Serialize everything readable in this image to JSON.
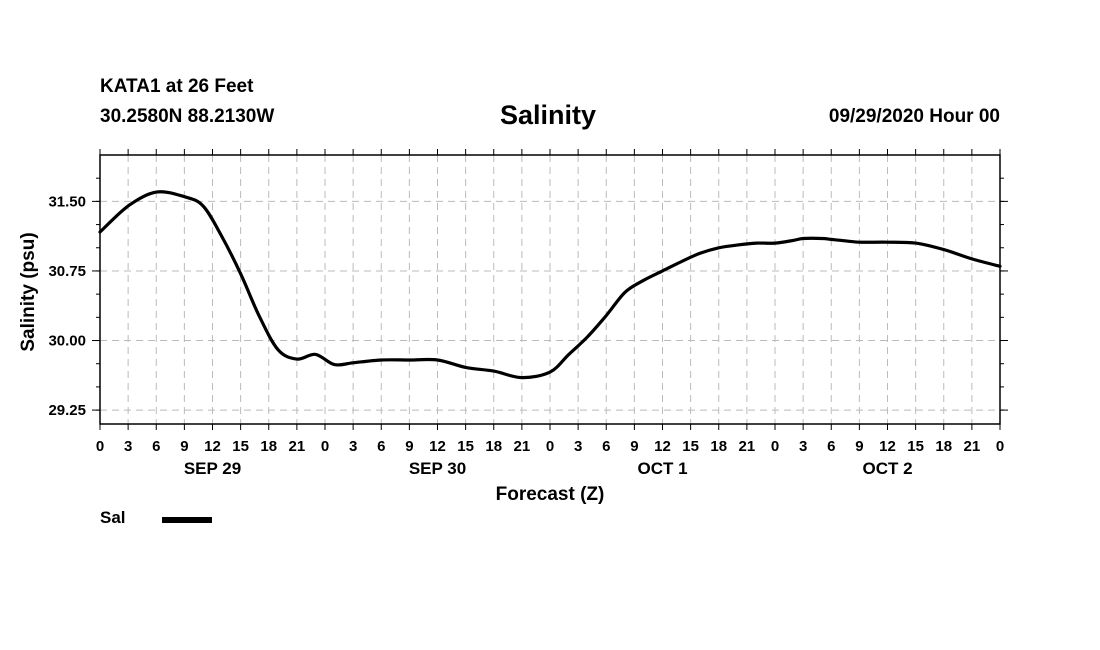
{
  "header": {
    "station": "KATA1 at 26 Feet",
    "coords": "30.2580N 88.2130W",
    "run": "09/29/2020 Hour 00"
  },
  "legend": {
    "label": "Sal",
    "icon": "thick-black-line-swatch"
  },
  "chart_data": {
    "type": "line",
    "title": "Salinity",
    "xlabel": "Forecast (Z)",
    "ylabel": "Salinity (psu)",
    "xlim": [
      0,
      96
    ],
    "ylim": [
      29.1,
      32.0
    ],
    "y_ticks": [
      29.25,
      30.0,
      30.75,
      31.5
    ],
    "y_tick_labels": [
      "29.25",
      "30.00",
      "30.75",
      "31.50"
    ],
    "x_tick_hours": [
      0,
      3,
      6,
      9,
      12,
      15,
      18,
      21,
      24,
      27,
      30,
      33,
      36,
      39,
      42,
      45,
      48,
      51,
      54,
      57,
      60,
      63,
      66,
      69,
      72,
      75,
      78,
      81,
      84,
      87,
      90,
      93,
      96
    ],
    "x_tick_labels": [
      "0",
      "3",
      "6",
      "9",
      "12",
      "15",
      "18",
      "21",
      "0",
      "3",
      "6",
      "9",
      "12",
      "15",
      "18",
      "21",
      "0",
      "3",
      "6",
      "9",
      "12",
      "15",
      "18",
      "21",
      "0",
      "3",
      "6",
      "9",
      "12",
      "15",
      "18",
      "21",
      "0"
    ],
    "date_labels": [
      {
        "hour": 12,
        "text": "SEP 29"
      },
      {
        "hour": 36,
        "text": "SEP 30"
      },
      {
        "hour": 60,
        "text": "OCT 1"
      },
      {
        "hour": 84,
        "text": "OCT 2"
      }
    ],
    "grid": true,
    "legend_position": "bottom-left",
    "series": [
      {
        "name": "Sal",
        "color": "#000000",
        "x": [
          0,
          3,
          6,
          9,
          11,
          13,
          15,
          17,
          19,
          21,
          23,
          25,
          27,
          30,
          33,
          36,
          39,
          42,
          45,
          48,
          50,
          52,
          54,
          56,
          58,
          60,
          62,
          64,
          66,
          68,
          70,
          72,
          74,
          75,
          77,
          78,
          79,
          81,
          84,
          87,
          90,
          93,
          96
        ],
        "y": [
          31.17,
          31.45,
          31.6,
          31.55,
          31.45,
          31.12,
          30.72,
          30.26,
          29.9,
          29.8,
          29.85,
          29.74,
          29.76,
          29.79,
          29.79,
          29.79,
          29.71,
          29.67,
          29.6,
          29.66,
          29.85,
          30.04,
          30.27,
          30.52,
          30.65,
          30.75,
          30.85,
          30.94,
          31.0,
          31.03,
          31.05,
          31.05,
          31.08,
          31.1,
          31.1,
          31.09,
          31.08,
          31.06,
          31.06,
          31.05,
          30.98,
          30.88,
          30.8
        ]
      }
    ]
  }
}
